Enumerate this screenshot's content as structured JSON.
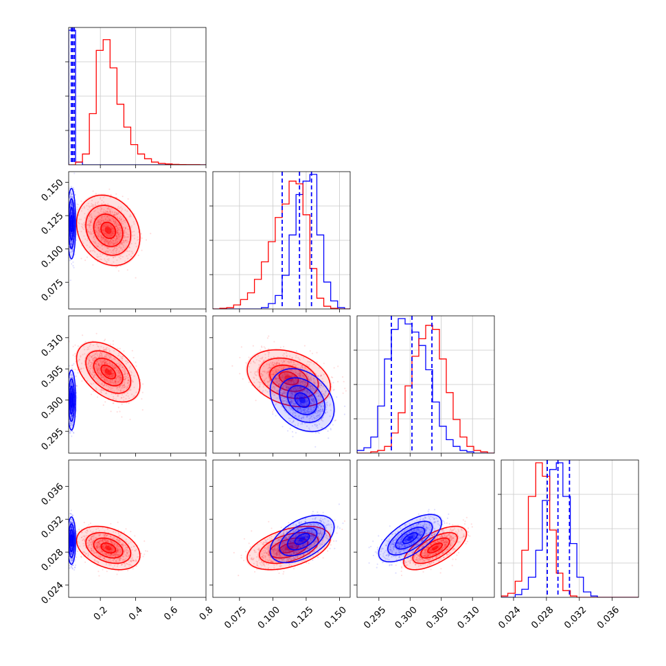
{
  "chart_data": {
    "type": "corner",
    "panels_per_side": 4,
    "colors": {
      "sample_a": "#0000ff",
      "sample_b": "#ff0000"
    },
    "grid": true,
    "parameters": [
      {
        "index": 0,
        "range": [
          0.02,
          0.8
        ],
        "tick_values": [
          0.2,
          0.4,
          0.6,
          0.8
        ],
        "tick_labels": [
          "0.2",
          "0.4",
          "0.6",
          "0.8"
        ]
      },
      {
        "index": 1,
        "range": [
          0.055,
          0.158
        ],
        "tick_values": [
          0.075,
          0.1,
          0.125,
          0.15
        ],
        "tick_labels": [
          "0.075",
          "0.100",
          "0.125",
          "0.150"
        ]
      },
      {
        "index": 2,
        "range": [
          0.2915,
          0.3135
        ],
        "tick_values": [
          0.295,
          0.3,
          0.305,
          0.31
        ],
        "tick_labels": [
          "0.295",
          "0.300",
          "0.305",
          "0.310"
        ]
      },
      {
        "index": 3,
        "range": [
          0.0225,
          0.0392
        ],
        "tick_values": [
          0.024,
          0.028,
          0.032,
          0.036
        ],
        "tick_labels": [
          "0.024",
          "0.028",
          "0.032",
          "0.036"
        ]
      }
    ],
    "quantile_lines": [
      {
        "parameter": 0,
        "color": "#0000ff",
        "values": [
          0.035,
          0.043,
          0.052
        ]
      },
      {
        "parameter": 1,
        "color": "#0000ff",
        "values": [
          0.107,
          0.12,
          0.129
        ]
      },
      {
        "parameter": 2,
        "color": "#0000ff",
        "values": [
          0.297,
          0.3003,
          0.3035
        ]
      },
      {
        "parameter": 3,
        "color": "#0000ff",
        "values": [
          0.0281,
          0.0294,
          0.0308
        ]
      }
    ],
    "histograms": [
      {
        "parameter": 0,
        "bins": [
          0.02,
          0.0592,
          0.0984,
          0.1376,
          0.1768,
          0.216,
          0.2552,
          0.2944,
          0.3336,
          0.3728,
          0.412,
          0.4512,
          0.4904,
          0.5296,
          0.5688,
          0.608,
          0.6472,
          0.6864,
          0.7256,
          0.7648,
          0.8
        ],
        "series": [
          {
            "name": "",
            "color": "#0000ff",
            "counts": [
              1.0,
              0.02,
              0,
              0,
              0,
              0,
              0,
              0,
              0,
              0,
              0,
              0,
              0,
              0,
              0,
              0,
              0,
              0,
              0,
              0
            ]
          },
          {
            "name": "",
            "color": "#ff0000",
            "counts": [
              0,
              0.02,
              0.08,
              0.38,
              0.85,
              0.93,
              0.72,
              0.45,
              0.28,
              0.15,
              0.08,
              0.045,
              0.02,
              0.01,
              0.006,
              0.003,
              0.002,
              0.001,
              0.001,
              0
            ]
          }
        ]
      },
      {
        "parameter": 1,
        "bins": [
          0.055,
          0.0602,
          0.0654,
          0.0706,
          0.0758,
          0.081,
          0.0862,
          0.0914,
          0.0966,
          0.1018,
          0.107,
          0.1122,
          0.1174,
          0.1226,
          0.1278,
          0.133,
          0.1382,
          0.1434,
          0.1486,
          0.1538,
          0.158
        ],
        "series": [
          {
            "name": "",
            "color": "#0000ff",
            "counts": [
              0,
              0,
              0,
              0,
              0,
              0,
              0,
              0.01,
              0.04,
              0.1,
              0.25,
              0.55,
              0.85,
              0.95,
              1.0,
              0.55,
              0.2,
              0.06,
              0.01,
              0
            ]
          },
          {
            "name": "",
            "color": "#ff0000",
            "counts": [
              0,
              0.005,
              0.01,
              0.03,
              0.07,
              0.12,
              0.22,
              0.35,
              0.5,
              0.68,
              0.78,
              0.95,
              0.93,
              0.7,
              0.3,
              0.08,
              0.02,
              0.005,
              0,
              0
            ]
          }
        ]
      },
      {
        "parameter": 2,
        "bins": [
          0.2915,
          0.2926,
          0.2937,
          0.2948,
          0.2959,
          0.297,
          0.2981,
          0.2992,
          0.3003,
          0.3014,
          0.3025,
          0.3036,
          0.3047,
          0.3058,
          0.3069,
          0.308,
          0.3091,
          0.3102,
          0.3113,
          0.3124,
          0.3135
        ],
        "series": [
          {
            "name": "",
            "color": "#0000ff",
            "counts": [
              0.02,
              0.04,
              0.12,
              0.35,
              0.7,
              0.92,
              1.0,
              0.96,
              0.9,
              0.8,
              0.62,
              0.38,
              0.2,
              0.1,
              0.05,
              0.02,
              0.01,
              0,
              0,
              0
            ]
          },
          {
            "name": "",
            "color": "#ff0000",
            "counts": [
              0,
              0,
              0.01,
              0.02,
              0.05,
              0.15,
              0.3,
              0.5,
              0.72,
              0.85,
              0.95,
              0.92,
              0.7,
              0.45,
              0.25,
              0.12,
              0.05,
              0.02,
              0.01,
              0
            ]
          }
        ]
      },
      {
        "parameter": 3,
        "bins": [
          0.0225,
          0.0233,
          0.0242,
          0.025,
          0.0258,
          0.0267,
          0.0275,
          0.0284,
          0.0292,
          0.03,
          0.0309,
          0.0317,
          0.0325,
          0.0334,
          0.0342,
          0.035,
          0.0359,
          0.0367,
          0.0375,
          0.0384,
          0.0392
        ],
        "series": [
          {
            "name": "",
            "color": "#0000ff",
            "counts": [
              0,
              0,
              0.02,
              0.06,
              0.15,
              0.35,
              0.72,
              0.95,
              1.0,
              0.75,
              0.4,
              0.15,
              0.04,
              0.01,
              0,
              0,
              0,
              0,
              0,
              0
            ]
          },
          {
            "name": "",
            "color": "#ff0000",
            "counts": [
              0.01,
              0.03,
              0.12,
              0.35,
              0.75,
              1.0,
              0.9,
              0.5,
              0.18,
              0.05,
              0.01,
              0,
              0,
              0,
              0,
              0,
              0,
              0,
              0,
              0
            ]
          }
        ]
      }
    ],
    "joint_distributions": [
      {
        "x_parameter": 0,
        "y_parameter": 1,
        "blue": {
          "center": [
            0.036,
            0.119
          ],
          "sd": [
            0.01,
            0.011
          ],
          "rho": 0.0
        },
        "red": {
          "center": [
            0.245,
            0.114
          ],
          "sd": [
            0.075,
            0.011
          ],
          "rho": -0.2
        }
      },
      {
        "x_parameter": 0,
        "y_parameter": 2,
        "blue": {
          "center": [
            0.036,
            0.3
          ],
          "sd": [
            0.01,
            0.002
          ],
          "rho": 0.0
        },
        "red": {
          "center": [
            0.245,
            0.3045
          ],
          "sd": [
            0.075,
            0.002
          ],
          "rho": -0.45
        }
      },
      {
        "x_parameter": 0,
        "y_parameter": 3,
        "blue": {
          "center": [
            0.036,
            0.0294
          ],
          "sd": [
            0.01,
            0.0012
          ],
          "rho": 0.0
        },
        "red": {
          "center": [
            0.245,
            0.0285
          ],
          "sd": [
            0.075,
            0.0011
          ],
          "rho": -0.35
        }
      },
      {
        "x_parameter": 1,
        "y_parameter": 2,
        "blue": {
          "center": [
            0.122,
            0.3
          ],
          "sd": [
            0.01,
            0.0021
          ],
          "rho": -0.3
        },
        "red": {
          "center": [
            0.112,
            0.3035
          ],
          "sd": [
            0.013,
            0.0019
          ],
          "rho": -0.3
        }
      },
      {
        "x_parameter": 1,
        "y_parameter": 3,
        "blue": {
          "center": [
            0.122,
            0.0296
          ],
          "sd": [
            0.01,
            0.0012
          ],
          "rho": 0.5
        },
        "red": {
          "center": [
            0.112,
            0.0285
          ],
          "sd": [
            0.013,
            0.0011
          ],
          "rho": 0.45
        }
      },
      {
        "x_parameter": 2,
        "y_parameter": 3,
        "blue": {
          "center": [
            0.3,
            0.0297
          ],
          "sd": [
            0.0021,
            0.0012
          ],
          "rho": 0.65
        },
        "red": {
          "center": [
            0.304,
            0.0285
          ],
          "sd": [
            0.0021,
            0.0011
          ],
          "rho": 0.65
        }
      }
    ]
  }
}
